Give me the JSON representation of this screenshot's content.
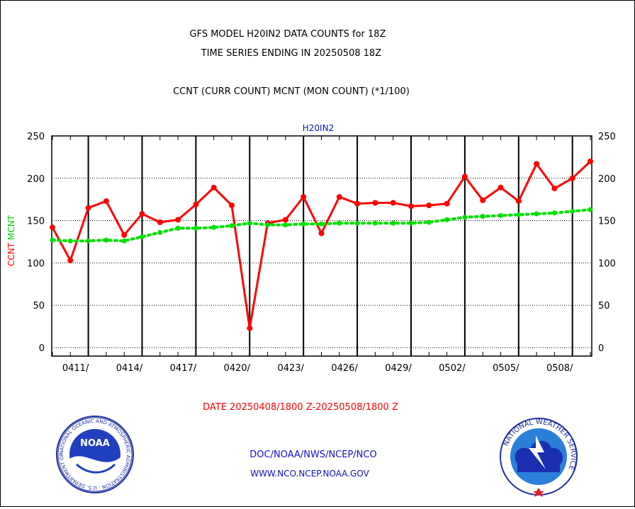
{
  "header": {
    "title_line1": "GFS MODEL H20IN2 DATA COUNTS for 18Z",
    "title_line2": "TIME SERIES ENDING IN 20250508 18Z",
    "subtitle": "CCNT (CURR COUNT) MCNT (MON COUNT) (*1/100)"
  },
  "chart_data": {
    "type": "line",
    "title": "H20IN2",
    "ylabel_left": [
      "CCNT",
      "MCNT"
    ],
    "ylim": [
      -10,
      250
    ],
    "yticks": [
      0,
      50,
      100,
      150,
      200,
      250
    ],
    "x_tick_labels": [
      "0411/",
      "0414/",
      "0417/",
      "0420/",
      "0423/",
      "0426/",
      "0429/",
      "0502/",
      "0505/",
      "0508/"
    ],
    "xlabel": "DATE 20250408/1800 Z-20250508/1800 Z",
    "grid": true,
    "series": [
      {
        "name": "CCNT",
        "color": "#ff0000",
        "values": [
          142,
          103,
          165,
          173,
          133,
          158,
          148,
          151,
          169,
          189,
          168,
          23,
          147,
          151,
          178,
          135,
          178,
          170,
          171,
          171,
          167,
          168,
          170,
          202,
          174,
          189,
          173,
          217,
          188,
          200,
          220
        ]
      },
      {
        "name": "MCNT",
        "color": "#00e000",
        "values": [
          127,
          126,
          126,
          127,
          126,
          131,
          136,
          141,
          141,
          142,
          144,
          147,
          145,
          145,
          146,
          146,
          147,
          147,
          147,
          147,
          147,
          148,
          151,
          154,
          155,
          156,
          157,
          158,
          159,
          161,
          163
        ]
      }
    ]
  },
  "footer": {
    "line1": "DOC/NOAA/NWS/NCEP/NCO",
    "line2": "WWW.NCO.NCEP.NOAA.GOV"
  },
  "logos": {
    "noaa_seal_text": "NOAA",
    "noaa_ring_text": "NATIONAL OCEANIC AND ATMOSPHERIC ADMINISTRATION · U.S. DEPARTMENT OF COMMERCE",
    "nws_ring_text": "NATIONAL WEATHER SERVICE"
  }
}
